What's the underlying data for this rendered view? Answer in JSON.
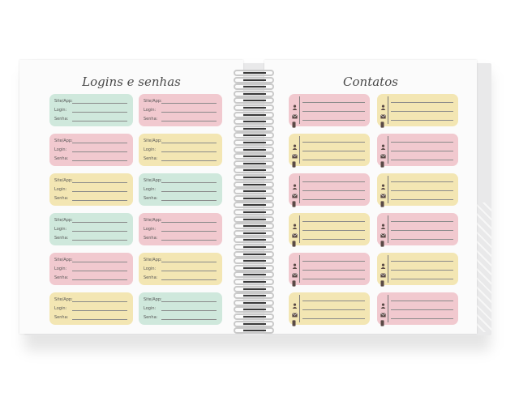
{
  "left_page": {
    "title": "Logins e senhas",
    "field_labels": [
      "Site/App:",
      "Login:",
      "Senha:"
    ],
    "card_colors": [
      [
        "#cfe8dc",
        "#f1c9cf"
      ],
      [
        "#f1c9cf",
        "#f3e6b3"
      ],
      [
        "#f3e6b3",
        "#cfe8dc"
      ],
      [
        "#cfe8dc",
        "#f1c9cf"
      ],
      [
        "#f1c9cf",
        "#f3e6b3"
      ],
      [
        "#f3e6b3",
        "#cfe8dc"
      ]
    ]
  },
  "right_page": {
    "title": "Contatos",
    "card_colors": [
      [
        "#f1c9cf",
        "#f3e6b3"
      ],
      [
        "#f3e6b3",
        "#f1c9cf"
      ],
      [
        "#f1c9cf",
        "#f3e6b3"
      ],
      [
        "#f3e6b3",
        "#f1c9cf"
      ],
      [
        "#f1c9cf",
        "#f3e6b3"
      ],
      [
        "#f3e6b3",
        "#f1c9cf"
      ]
    ],
    "icons": [
      "person-icon",
      "envelope-icon",
      "phone-icon"
    ]
  },
  "colors": {
    "icon": "#5a4a46",
    "ring": "#c9c9c9",
    "cover": "#e9e9ea"
  }
}
